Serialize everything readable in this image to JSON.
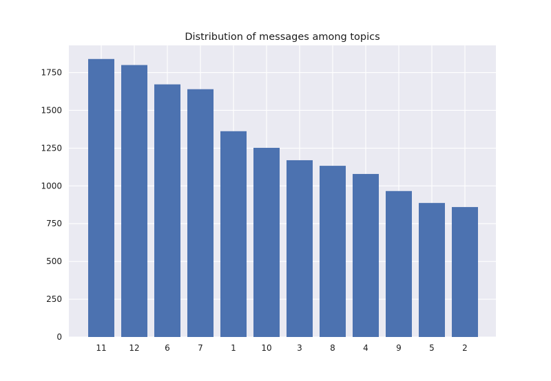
{
  "chart_data": {
    "type": "bar",
    "title": "Distribution of messages among topics",
    "xlabel": "",
    "ylabel": "",
    "categories": [
      "11",
      "12",
      "6",
      "7",
      "1",
      "10",
      "3",
      "8",
      "4",
      "9",
      "5",
      "2"
    ],
    "values": [
      1840,
      1800,
      1672,
      1640,
      1362,
      1252,
      1170,
      1133,
      1079,
      966,
      887,
      860
    ],
    "ylim": [
      0,
      1930
    ],
    "yticks": [
      0,
      250,
      500,
      750,
      1000,
      1250,
      1500,
      1750
    ],
    "grid": true,
    "colors": {
      "bar": "#4c72b0",
      "plot_background": "#eaeaf2",
      "grid": "#ffffff"
    }
  }
}
